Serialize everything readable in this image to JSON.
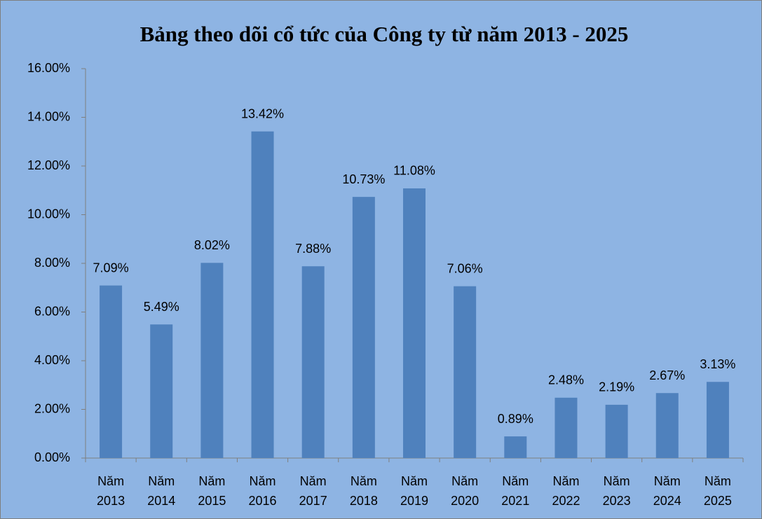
{
  "chart_data": {
    "type": "bar",
    "title": "Bảng theo dõi cổ tức của Công ty từ năm 2013 - 2025",
    "categories": [
      "Năm 2013",
      "Năm 2014",
      "Năm 2015",
      "Năm 2016",
      "Năm 2017",
      "Năm 2018",
      "Năm 2019",
      "Năm 2020",
      "Năm 2021",
      "Năm 2022",
      "Năm 2023",
      "Năm 2024",
      "Năm 2025"
    ],
    "values": [
      7.09,
      5.49,
      8.02,
      13.42,
      7.88,
      10.73,
      11.08,
      7.06,
      0.89,
      2.48,
      2.19,
      2.67,
      3.13
    ],
    "value_labels": [
      "7.09%",
      "5.49%",
      "8.02%",
      "13.42%",
      "7.88%",
      "10.73%",
      "11.08%",
      "7.06%",
      "0.89%",
      "2.48%",
      "2.19%",
      "2.67%",
      "3.13%"
    ],
    "color": "#4f81bd",
    "ylim": [
      0,
      16
    ],
    "yticks": [
      {
        "value": 0,
        "label": "0.00%"
      },
      {
        "value": 2,
        "label": "2.00%"
      },
      {
        "value": 4,
        "label": "4.00%"
      },
      {
        "value": 6,
        "label": "6.00%"
      },
      {
        "value": 8,
        "label": "8.00%"
      },
      {
        "value": 10,
        "label": "10.00%"
      },
      {
        "value": 12,
        "label": "12.00%"
      },
      {
        "value": 14,
        "label": "14.00%"
      },
      {
        "value": 16,
        "label": "16.00%"
      }
    ],
    "grid": false
  }
}
